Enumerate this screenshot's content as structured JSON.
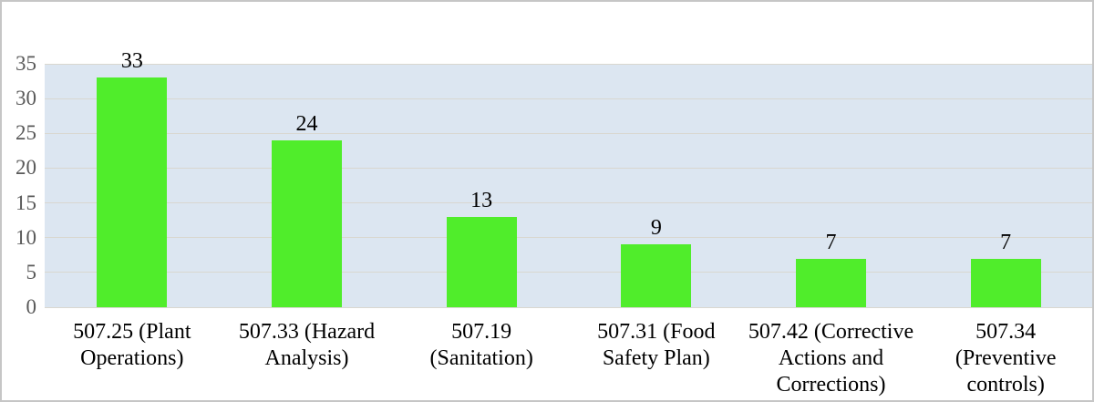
{
  "chart_data": {
    "type": "bar",
    "title": "",
    "xlabel": "",
    "ylabel": "",
    "categories": [
      "507.25 (Plant Operations)",
      "507.33 (Hazard Analysis)",
      "507.19 (Sanitation)",
      "507.31 (Food Safety Plan)",
      "507.42 (Corrective Actions and Corrections)",
      "507.34 (Preventive controls)"
    ],
    "category_label_lines": [
      [
        "507.25 (Plant",
        "Operations)"
      ],
      [
        "507.33 (Hazard",
        "Analysis)"
      ],
      [
        "507.19",
        "(Sanitation)"
      ],
      [
        "507.31 (Food",
        "Safety Plan)"
      ],
      [
        "507.42 (Corrective",
        "Actions and",
        "Corrections)"
      ],
      [
        "507.34",
        "(Preventive",
        "controls)"
      ]
    ],
    "values": [
      33,
      24,
      13,
      9,
      7,
      7
    ],
    "data_labels": [
      "33",
      "24",
      "13",
      "9",
      "7",
      "7"
    ],
    "ylim": [
      0,
      35
    ],
    "yticks": [
      0,
      5,
      10,
      15,
      20,
      25,
      30,
      35
    ],
    "grid": true,
    "legend_position": "none",
    "colors": {
      "bar": "#50ed2b",
      "plot_background": "#dce6f1",
      "gridline": "#d9d7d0",
      "y_tick_label": "#595959",
      "value_label": "#000000",
      "frame_border": "#c6c6c6"
    }
  }
}
